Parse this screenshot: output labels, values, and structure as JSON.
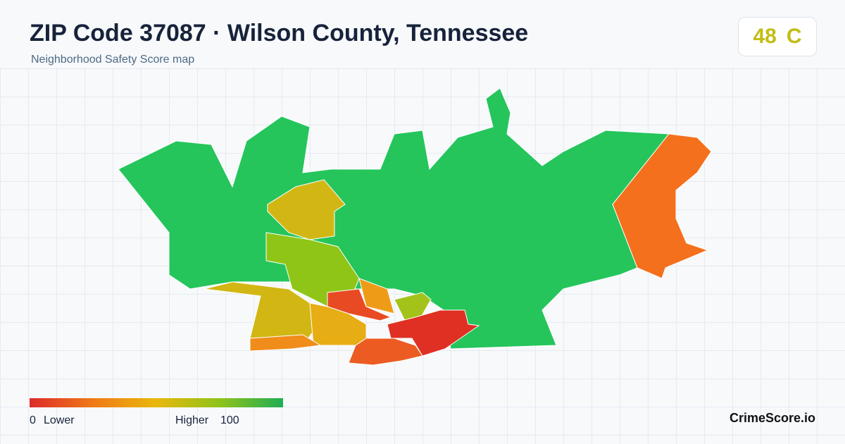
{
  "header": {
    "title": "ZIP Code 37087 · Wilson County, Tennessee",
    "subtitle": "Neighborhood Safety Score map"
  },
  "score": {
    "value": "48",
    "grade": "C"
  },
  "legend": {
    "min": "0",
    "min_label": "Lower",
    "max_label": "Higher",
    "max": "100"
  },
  "brand": "CrimeScore.io"
}
